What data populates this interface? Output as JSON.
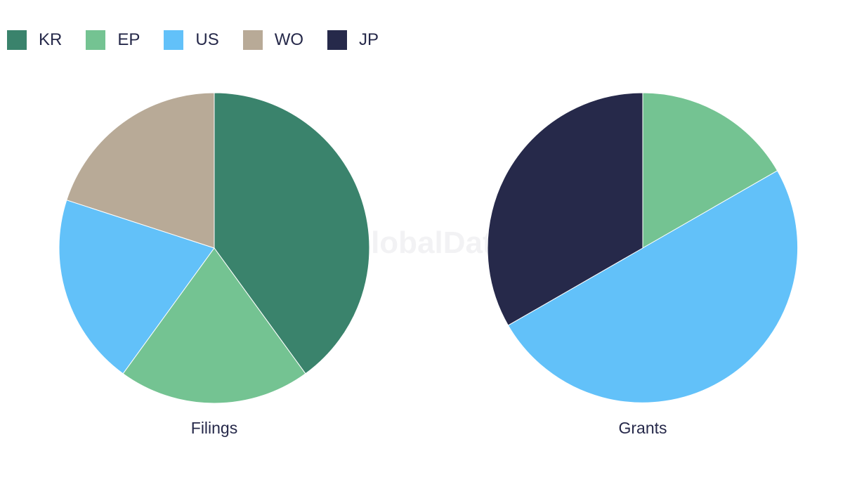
{
  "watermark": "GlobalData",
  "legend": [
    {
      "label": "KR",
      "color": "#3a836c"
    },
    {
      "label": "EP",
      "color": "#74c392"
    },
    {
      "label": "US",
      "color": "#62c1f9"
    },
    {
      "label": "WO",
      "color": "#b8aa97"
    },
    {
      "label": "JP",
      "color": "#26294a"
    }
  ],
  "chart_data": [
    {
      "type": "pie",
      "title": "Filings",
      "slices": [
        {
          "label": "KR",
          "value": 40,
          "color": "#3a836c"
        },
        {
          "label": "EP",
          "value": 20,
          "color": "#74c392"
        },
        {
          "label": "US",
          "value": 20,
          "color": "#62c1f9"
        },
        {
          "label": "WO",
          "value": 20,
          "color": "#b8aa97"
        }
      ]
    },
    {
      "type": "pie",
      "title": "Grants",
      "slices": [
        {
          "label": "EP",
          "value": 16.7,
          "color": "#74c392"
        },
        {
          "label": "US",
          "value": 50,
          "color": "#62c1f9"
        },
        {
          "label": "JP",
          "value": 33.3,
          "color": "#26294a"
        }
      ]
    }
  ]
}
